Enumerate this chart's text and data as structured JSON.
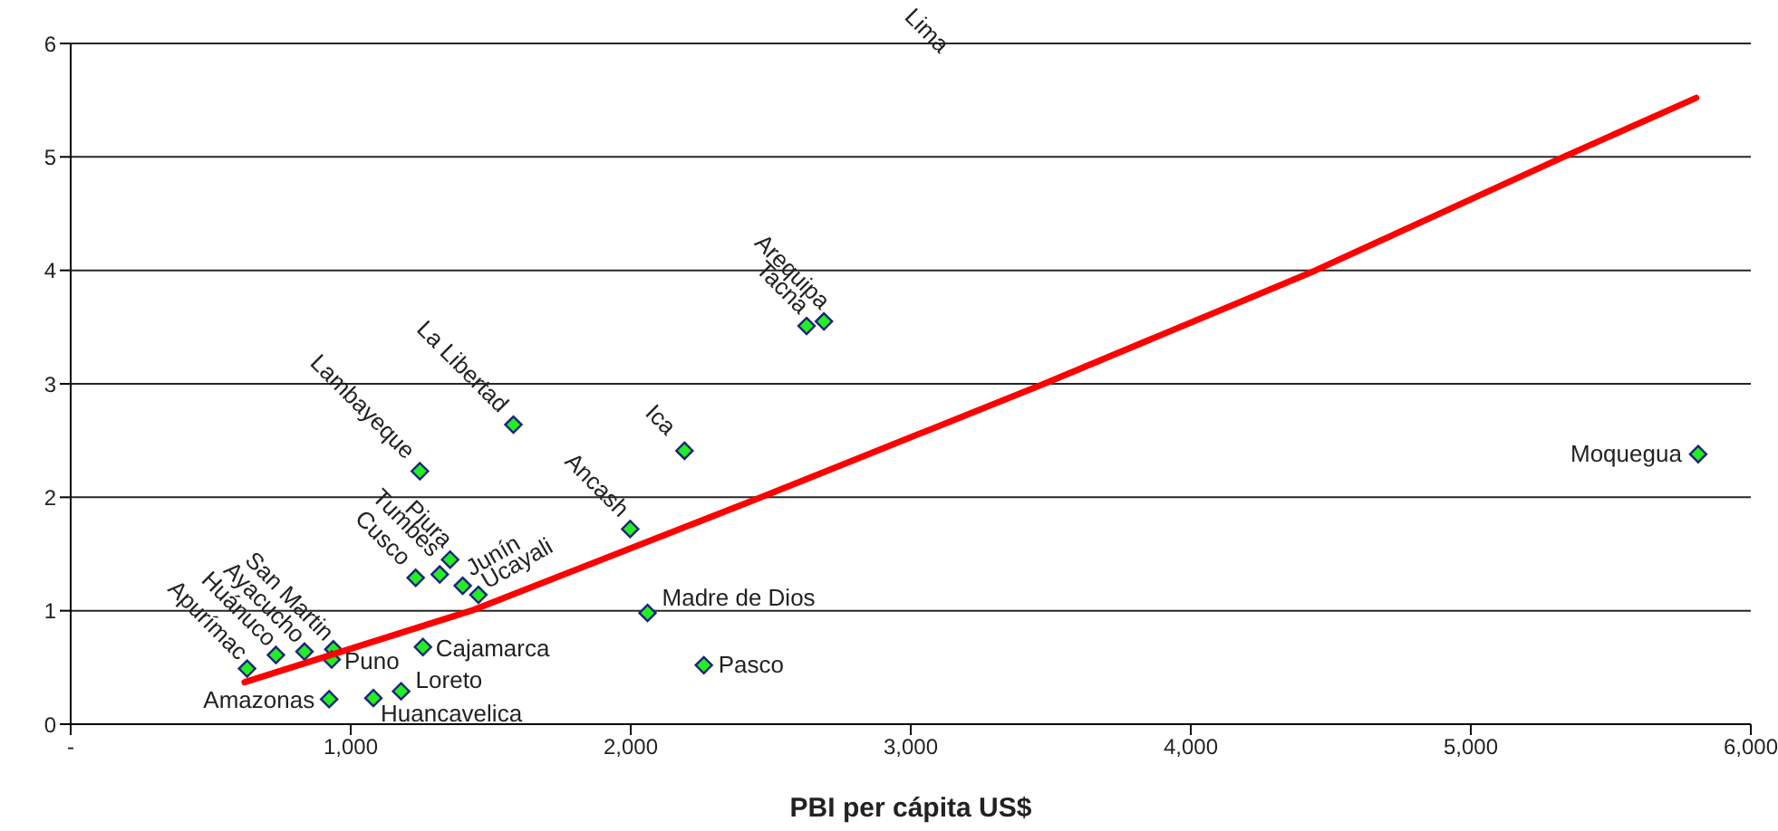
{
  "chart_data": {
    "type": "scatter",
    "xlabel": "PBI per cápita US$",
    "xlim": [
      0,
      6000
    ],
    "xticks": [
      {
        "value": 0,
        "label": "-"
      },
      {
        "value": 1000,
        "label": "1,000"
      },
      {
        "value": 2000,
        "label": "2,000"
      },
      {
        "value": 3000,
        "label": "3,000"
      },
      {
        "value": 4000,
        "label": "4,000"
      },
      {
        "value": 5000,
        "label": "5,000"
      },
      {
        "value": 6000,
        "label": "6,000"
      }
    ],
    "ylim": [
      0,
      6
    ],
    "yticks": [
      0,
      1,
      2,
      3,
      4,
      5,
      6
    ],
    "grid": "y",
    "marker": "diamond",
    "series": [
      {
        "color": "#22ee22",
        "x": [
          630,
          733,
          835,
          938,
          932,
          1258,
          923,
          1081,
          1180,
          1232,
          1318,
          1355,
          1400,
          1456,
          1247,
          1581,
          2192,
          1998,
          2060,
          2261,
          2628,
          2690,
          5812
        ],
        "values": [
          0.49,
          0.61,
          0.64,
          0.66,
          0.57,
          0.68,
          0.22,
          0.23,
          0.29,
          1.29,
          1.32,
          1.45,
          1.22,
          1.14,
          2.23,
          2.64,
          2.41,
          1.72,
          0.98,
          0.52,
          3.51,
          3.55,
          2.38
        ]
      },
      {
        "type": "line",
        "marker": "none",
        "color": "#ff0000",
        "x": [
          621,
          1430,
          2466,
          3476,
          4446,
          5331,
          5805
        ],
        "values": [
          0.37,
          1,
          2,
          3,
          4,
          5,
          5.52
        ]
      }
    ],
    "annotations": [
      {
        "text": "Apurímac",
        "x": 630,
        "y": 0.49
      },
      {
        "text": "Huánuco",
        "x": 733,
        "y": 0.61
      },
      {
        "text": "Ayacucho",
        "x": 835,
        "y": 0.64
      },
      {
        "text": "San Martin",
        "x": 938,
        "y": 0.66
      },
      {
        "text": "Puno",
        "x": 932,
        "y": 0.57
      },
      {
        "text": "Cajamarca",
        "x": 1258,
        "y": 0.68
      },
      {
        "text": "Amazonas",
        "x": 923,
        "y": 0.22
      },
      {
        "text": "Huancavelica",
        "x": 1081,
        "y": 0.23
      },
      {
        "text": "Loreto",
        "x": 1180,
        "y": 0.29
      },
      {
        "text": "Cusco",
        "x": 1232,
        "y": 1.29
      },
      {
        "text": "Tumbes",
        "x": 1318,
        "y": 1.32
      },
      {
        "text": "Piura",
        "x": 1355,
        "y": 1.45
      },
      {
        "text": "Junín",
        "x": 1400,
        "y": 1.22
      },
      {
        "text": "Ucayali",
        "x": 1456,
        "y": 1.14
      },
      {
        "text": "Lambayeque",
        "x": 1247,
        "y": 2.23
      },
      {
        "text": "La Libertad",
        "x": 1581,
        "y": 2.64
      },
      {
        "text": "Ica",
        "x": 2192,
        "y": 2.41
      },
      {
        "text": "Ancash",
        "x": 1998,
        "y": 1.72
      },
      {
        "text": "Madre de Dios",
        "x": 2060,
        "y": 0.98
      },
      {
        "text": "Pasco",
        "x": 2261,
        "y": 0.52
      },
      {
        "text": "Tacna",
        "x": 2628,
        "y": 3.51
      },
      {
        "text": "Arequipa",
        "x": 2690,
        "y": 3.55
      },
      {
        "text": "Moquegua",
        "x": 5812,
        "y": 2.38
      },
      "Lima"
    ]
  }
}
